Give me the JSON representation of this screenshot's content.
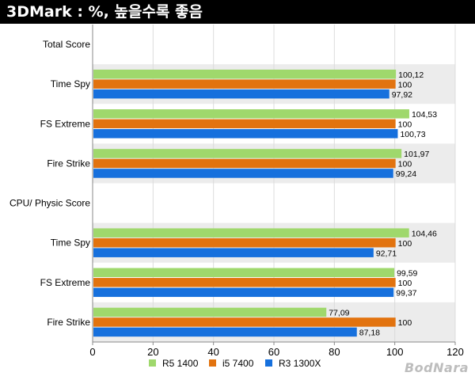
{
  "header": {
    "title": "3DMark : %, 높을수록 좋음"
  },
  "watermark": "BodNara",
  "chart_data": {
    "type": "bar",
    "orientation": "horizontal",
    "title": "3DMark : %, 높을수록 좋음",
    "xlim": [
      0,
      120
    ],
    "x_ticks": [
      "0",
      "20",
      "40",
      "60",
      "80",
      "100",
      "120"
    ],
    "legend_position": "bottom",
    "grid": true,
    "rows": [
      {
        "label": "Total Score",
        "kind": "section"
      },
      {
        "label": "Time Spy",
        "kind": "group",
        "values": [
          100.12,
          100,
          97.92
        ],
        "value_labels": [
          "100,12",
          "100",
          "97,92"
        ]
      },
      {
        "label": "FS Extreme",
        "kind": "group",
        "values": [
          104.53,
          100,
          100.73
        ],
        "value_labels": [
          "104,53",
          "100",
          "100,73"
        ]
      },
      {
        "label": "Fire Strike",
        "kind": "group",
        "values": [
          101.97,
          100,
          99.24
        ],
        "value_labels": [
          "101,97",
          "100",
          "99,24"
        ]
      },
      {
        "label": "CPU/ Physic Score",
        "kind": "section"
      },
      {
        "label": "Time Spy",
        "kind": "group",
        "values": [
          104.46,
          100,
          92.71
        ],
        "value_labels": [
          "104,46",
          "100",
          "92,71"
        ]
      },
      {
        "label": "FS Extreme",
        "kind": "group",
        "values": [
          99.59,
          100,
          99.37
        ],
        "value_labels": [
          "99,59",
          "100",
          "99,37"
        ]
      },
      {
        "label": "Fire Strike",
        "kind": "group",
        "values": [
          77.09,
          100,
          87.18
        ],
        "value_labels": [
          "77,09",
          "100",
          "87,18"
        ]
      }
    ],
    "series": [
      {
        "name": "R5 1400",
        "color": "#9fd86c"
      },
      {
        "name": "i5 7400",
        "color": "#e2730f"
      },
      {
        "name": "R3 1300X",
        "color": "#1670dd"
      }
    ]
  }
}
